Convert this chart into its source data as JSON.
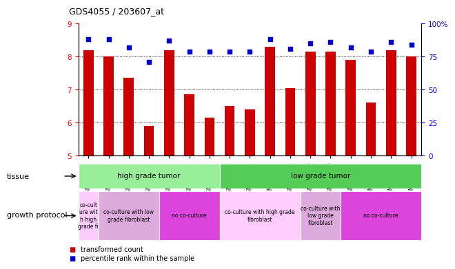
{
  "title": "GDS4055 / 203607_at",
  "samples": [
    "GSM665455",
    "GSM665447",
    "GSM665450",
    "GSM665452",
    "GSM665095",
    "GSM665102",
    "GSM665103",
    "GSM665071",
    "GSM665072",
    "GSM665073",
    "GSM665094",
    "GSM665069",
    "GSM665070",
    "GSM665042",
    "GSM665066",
    "GSM665067",
    "GSM665068"
  ],
  "bar_values": [
    8.2,
    8.0,
    7.35,
    5.9,
    8.2,
    6.85,
    6.15,
    6.5,
    6.4,
    8.3,
    7.05,
    8.15,
    8.15,
    7.9,
    6.6,
    8.2,
    8.0
  ],
  "dot_values": [
    88,
    88,
    82,
    71,
    87,
    79,
    79,
    79,
    79,
    88,
    81,
    85,
    86,
    82,
    79,
    86,
    84
  ],
  "ylim_left": [
    5,
    9
  ],
  "ylim_right": [
    0,
    100
  ],
  "yticks_left": [
    5,
    6,
    7,
    8,
    9
  ],
  "yticks_right": [
    0,
    25,
    50,
    75,
    100
  ],
  "bar_color": "#cc0000",
  "dot_color": "#0000cc",
  "tissue_row": [
    {
      "label": "high grade tumor",
      "start": 0,
      "end": 7,
      "color": "#99ee99"
    },
    {
      "label": "low grade tumor",
      "start": 7,
      "end": 17,
      "color": "#55cc55"
    }
  ],
  "growth_row": [
    {
      "label": "co-cult\nure wit\nh high\ngrade fi",
      "start": 0,
      "end": 1,
      "color": "#ffccff"
    },
    {
      "label": "co-culture with low\ngrade fibroblast",
      "start": 1,
      "end": 4,
      "color": "#ddaadd"
    },
    {
      "label": "no co-culture",
      "start": 4,
      "end": 7,
      "color": "#dd44dd"
    },
    {
      "label": "co-culture with high grade\nfibroblast",
      "start": 7,
      "end": 11,
      "color": "#ffccff"
    },
    {
      "label": "co-culture with\nlow grade\nfibroblast",
      "start": 11,
      "end": 13,
      "color": "#ddaadd"
    },
    {
      "label": "no co-culture",
      "start": 13,
      "end": 17,
      "color": "#dd44dd"
    }
  ],
  "tissue_label": "tissue",
  "growth_label": "growth protocol",
  "legend1": "transformed count",
  "legend2": "percentile rank within the sample",
  "bg_color": "#ffffff"
}
